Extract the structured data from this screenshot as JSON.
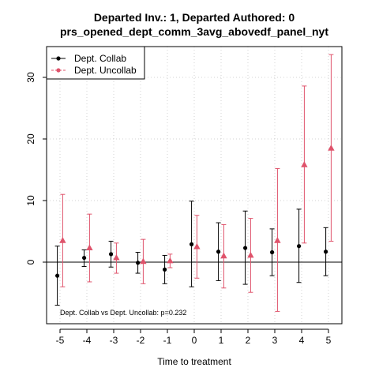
{
  "chart_data": {
    "type": "scatter",
    "title": "Departed Inv.: 1, Departed Authored: 0",
    "subtitle": "prs_opened_dept_comm_3avg_abovedf_panel_nyt",
    "xlabel": "Time to treatment",
    "ylabel": "",
    "x": [
      -5,
      -4,
      -3,
      -2,
      -1,
      0,
      1,
      2,
      3,
      4,
      5
    ],
    "x_tick_labels": [
      "-5",
      "-4",
      "-3",
      "-2",
      "-1",
      "0",
      "1",
      "2",
      "3",
      "4",
      "5"
    ],
    "y_ticks": [
      0,
      10,
      20,
      30
    ],
    "y_tick_labels": [
      "0",
      "10",
      "20",
      "30"
    ],
    "xlim": [
      -5.5,
      5.5
    ],
    "ylim": [
      -10,
      35
    ],
    "grid": true,
    "reference_line_y": 0,
    "legend_position": "top-left",
    "series": [
      {
        "name": "Dept. Collab",
        "color": "#000000",
        "marker": "circle",
        "offset": -0.1,
        "values": [
          -2.2,
          0.7,
          1.3,
          -0.1,
          -1.2,
          2.9,
          1.7,
          2.3,
          1.6,
          2.6,
          1.7
        ],
        "lower": [
          -7.0,
          -0.7,
          -0.8,
          -1.8,
          -3.5,
          -4.0,
          -3.0,
          -3.6,
          -2.2,
          -3.3,
          -2.2
        ],
        "upper": [
          2.6,
          2.0,
          3.4,
          1.6,
          1.1,
          9.9,
          6.4,
          8.3,
          5.4,
          8.6,
          5.6
        ]
      },
      {
        "name": "Dept. Uncollab",
        "color": "#DF536B",
        "marker": "triangle",
        "offset": 0.1,
        "values": [
          3.5,
          2.3,
          0.7,
          0.1,
          0.2,
          2.5,
          1.0,
          1.1,
          3.5,
          15.8,
          18.5
        ],
        "lower": [
          -4.0,
          -3.2,
          -1.8,
          -3.5,
          -0.9,
          -2.6,
          -4.2,
          -4.9,
          -8.0,
          3.1,
          3.4
        ],
        "upper": [
          11.0,
          7.8,
          3.1,
          3.7,
          1.3,
          7.6,
          6.1,
          7.1,
          15.2,
          28.6,
          33.7
        ]
      }
    ],
    "annotation": "Dept. Collab vs Dept. Uncollab: p=0.232"
  }
}
